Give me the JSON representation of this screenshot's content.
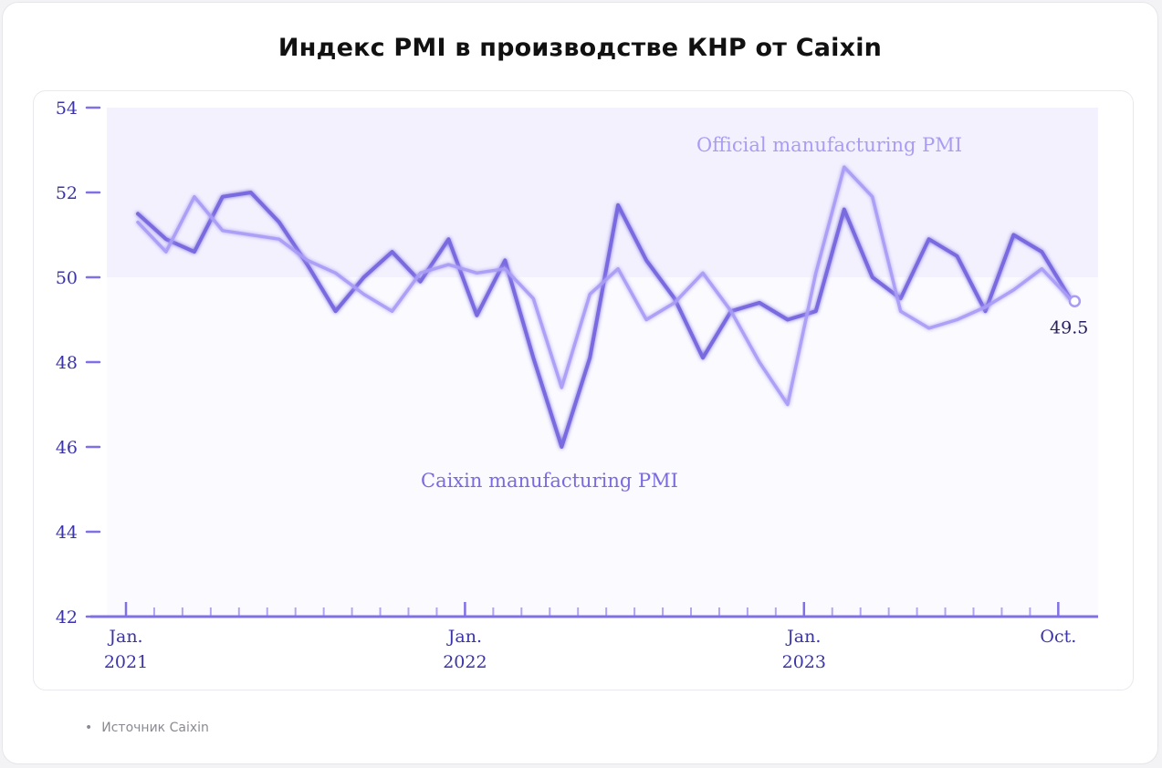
{
  "title": "Индекс PMI в производстве КНР от Caixin",
  "source": "Источник Caixin",
  "colors": {
    "caixin": "#7a6ae0",
    "official": "#a99cf6",
    "axis": "#7f70e6",
    "tick_text": "#3b34a8",
    "band_above_50": "#f3f1fe",
    "band_below_50": "#fafaff"
  },
  "chart_data": {
    "type": "line",
    "ylim": [
      42,
      54
    ],
    "yticks": [
      42,
      44,
      46,
      48,
      50,
      52,
      54
    ],
    "x_tick_labels": [
      {
        "index": 0,
        "lines": [
          "Jan.",
          "2021"
        ]
      },
      {
        "index": 12,
        "lines": [
          "Jan.",
          "2022"
        ]
      },
      {
        "index": 24,
        "lines": [
          "Jan.",
          "2023"
        ]
      },
      {
        "index": 33,
        "lines": [
          "Oct.",
          ""
        ]
      }
    ],
    "x": [
      "2021-01",
      "2021-02",
      "2021-03",
      "2021-04",
      "2021-05",
      "2021-06",
      "2021-07",
      "2021-08",
      "2021-09",
      "2021-10",
      "2021-11",
      "2021-12",
      "2022-01",
      "2022-02",
      "2022-03",
      "2022-04",
      "2022-05",
      "2022-06",
      "2022-07",
      "2022-08",
      "2022-09",
      "2022-10",
      "2022-11",
      "2022-12",
      "2023-01",
      "2023-02",
      "2023-03",
      "2023-04",
      "2023-05",
      "2023-06",
      "2023-07",
      "2023-08",
      "2023-09",
      "2023-10"
    ],
    "reference_line": 50,
    "series": [
      {
        "name": "Caixin manufacturing PMI",
        "values": [
          51.5,
          50.9,
          50.6,
          51.9,
          52.0,
          51.3,
          50.3,
          49.2,
          50.0,
          50.6,
          49.9,
          50.9,
          49.1,
          50.4,
          48.1,
          46.0,
          48.1,
          51.7,
          50.4,
          49.5,
          48.1,
          49.2,
          49.4,
          49.0,
          49.2,
          51.6,
          50.0,
          49.5,
          50.9,
          50.5,
          49.2,
          51.0,
          50.6,
          49.5
        ]
      },
      {
        "name": "Official manufacturing PMI",
        "values": [
          51.3,
          50.6,
          51.9,
          51.1,
          51.0,
          50.9,
          50.4,
          50.1,
          49.6,
          49.2,
          50.1,
          50.3,
          50.1,
          50.2,
          49.5,
          47.4,
          49.6,
          50.2,
          49.0,
          49.4,
          50.1,
          49.2,
          48.0,
          47.0,
          50.1,
          52.6,
          51.9,
          49.2,
          48.8,
          49.0,
          49.3,
          49.7,
          50.2,
          49.5
        ]
      }
    ],
    "end_value_label": "49.5",
    "grid": false
  }
}
